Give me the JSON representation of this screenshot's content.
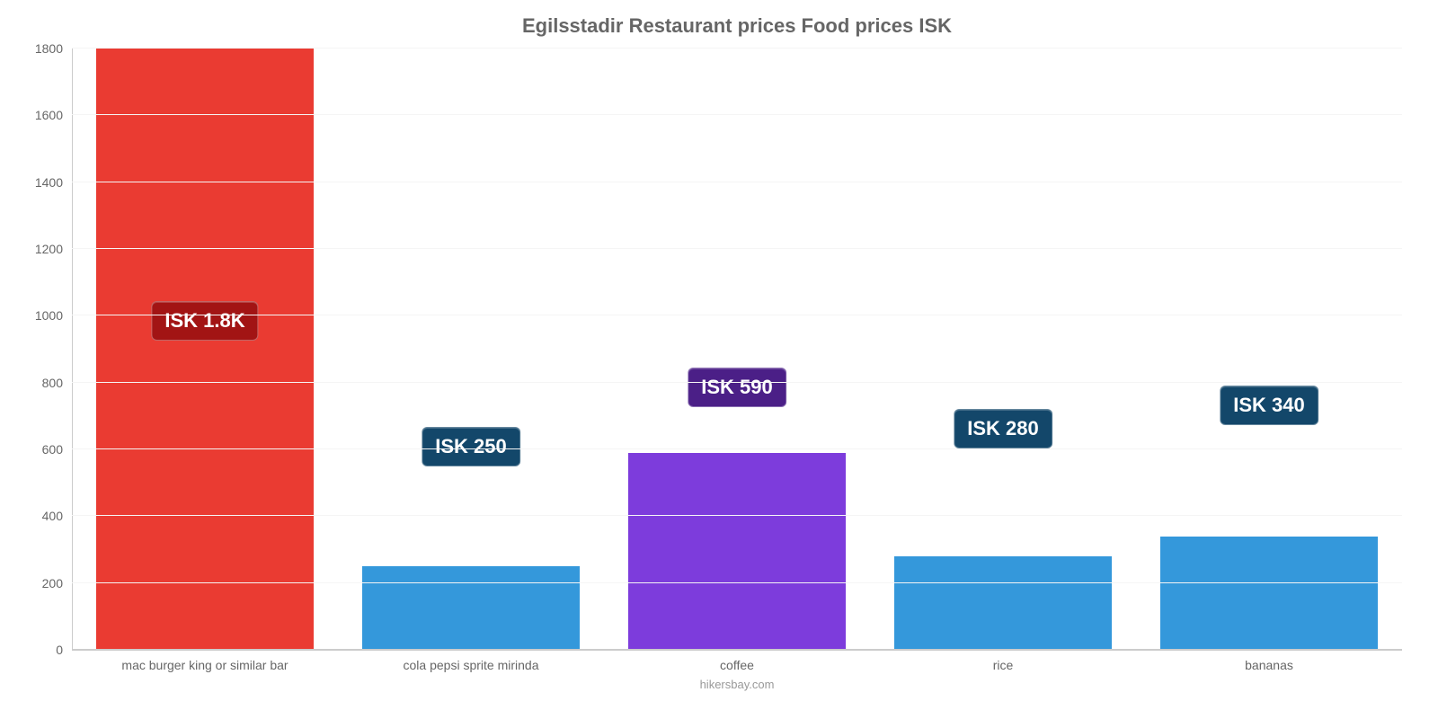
{
  "chart": {
    "type": "bar",
    "title": "Egilsstadir Restaurant prices Food prices ISK",
    "title_fontsize": 22,
    "title_color": "#666666",
    "background_color": "#ffffff",
    "grid_color": "#f5f5f5",
    "axis_color": "#cccccc",
    "tick_label_color": "#666666",
    "tick_label_fontsize": 14,
    "credit": "hikersbay.com",
    "credit_color": "#999999",
    "ylim": [
      0,
      1800
    ],
    "ytick_step": 200,
    "yticks": [
      0,
      200,
      400,
      600,
      800,
      1000,
      1200,
      1400,
      1600,
      1800
    ],
    "bar_width": 0.82,
    "value_badge": {
      "fontsize": 22,
      "text_color": "#ffffff",
      "border_radius": 6
    },
    "categories": [
      "mac burger king or similar bar",
      "cola pepsi sprite mirinda",
      "coffee",
      "rice",
      "bananas"
    ],
    "values": [
      1800,
      250,
      590,
      280,
      340
    ],
    "value_labels": [
      "ISK 1.8K",
      "ISK 250",
      "ISK 590",
      "ISK 280",
      "ISK 340"
    ],
    "bar_colors": [
      "#ea3b32",
      "#3498db",
      "#7d3cdc",
      "#3498db",
      "#3498db"
    ],
    "badge_colors": [
      "#a21414",
      "#13476a",
      "#4b1f87",
      "#13476a",
      "#13476a"
    ],
    "badge_positions_pct_from_top": [
      42,
      63,
      53,
      60,
      56
    ]
  }
}
